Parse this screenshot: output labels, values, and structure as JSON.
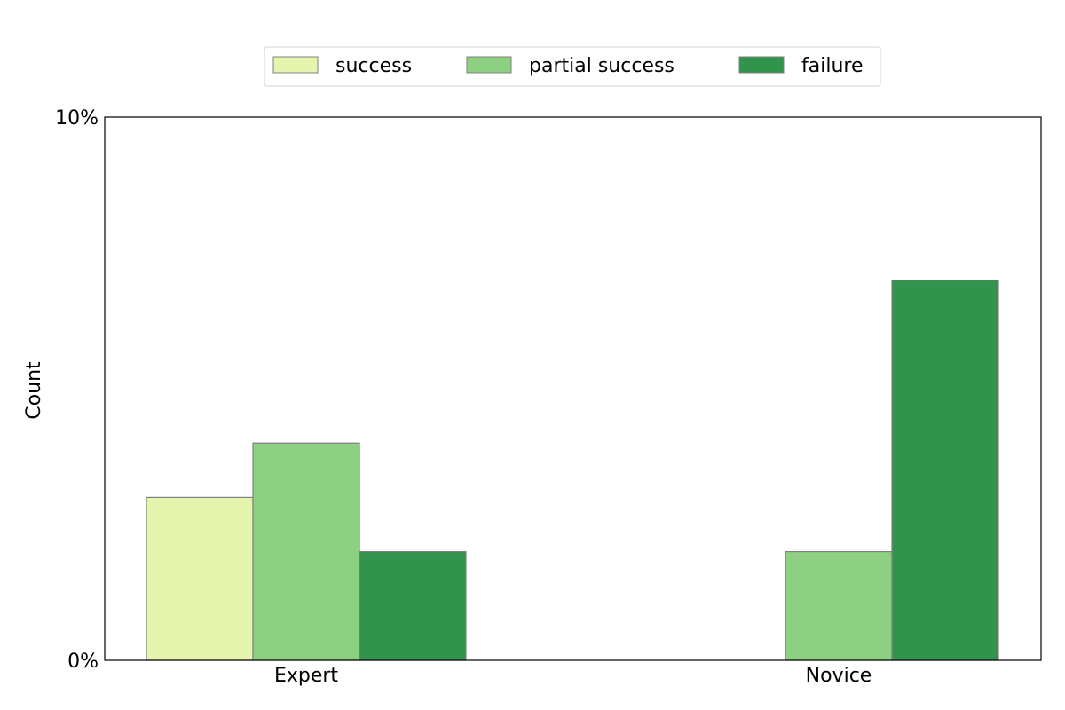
{
  "chart_data": {
    "type": "bar",
    "title": "",
    "xlabel": "",
    "ylabel": "Count",
    "categories": [
      "Expert",
      "Novice"
    ],
    "series": [
      {
        "name": "success",
        "values": [
          3,
          0
        ],
        "color": "#e5f5ad"
      },
      {
        "name": "partial success",
        "values": [
          4,
          2
        ],
        "color": "#8ed081"
      },
      {
        "name": "failure",
        "values": [
          2,
          7
        ],
        "color": "#31934c"
      }
    ],
    "ylim": [
      0,
      10
    ],
    "yticks": [
      {
        "value": 0,
        "label": "0%"
      },
      {
        "value": 10,
        "label": "10%"
      }
    ],
    "grid": false,
    "legend_position": "top-center",
    "bar_edge_color": "#808080"
  }
}
